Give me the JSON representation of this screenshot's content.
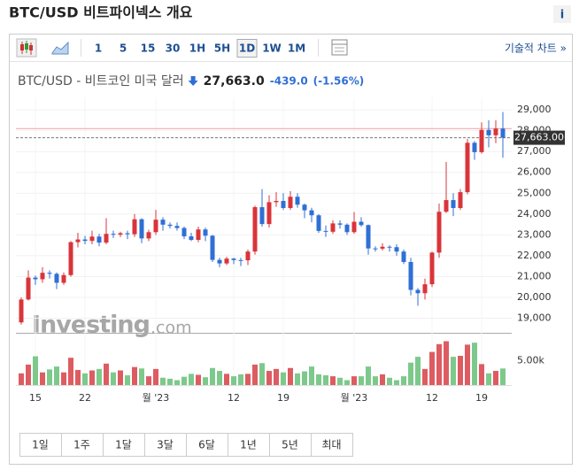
{
  "header": {
    "title": "BTC/USD 비트파이넥스 개요",
    "info": "i"
  },
  "toolbar": {
    "periods": [
      "1",
      "5",
      "15",
      "30",
      "1H",
      "5H",
      "1D",
      "1W",
      "1M"
    ],
    "selected": 6,
    "technical": "기술적 차트 »"
  },
  "quote": {
    "name": "BTC/USD - 비트코인 미국 달러",
    "price": "27,663.0",
    "change": "-439.0",
    "change_pct": "(-1.56%)"
  },
  "watermark": {
    "brand": "Investing",
    "suffix": ".com"
  },
  "ranges": [
    "1일",
    "1주",
    "1달",
    "3달",
    "6달",
    "1년",
    "5년",
    "최대"
  ],
  "chart_data": {
    "type": "candlestick",
    "up_color": "#d9343a",
    "down_color": "#2f6fd6",
    "volume_up_color": "#dd5c62",
    "volume_down_color": "#7dc98c",
    "grid": true,
    "xlim": [
      -0.75,
      69.25
    ],
    "xticks": [
      {
        "value": 2,
        "label": "15"
      },
      {
        "value": 9,
        "label": "22"
      },
      {
        "value": 19,
        "label": "월 '23"
      },
      {
        "value": 30,
        "label": "12"
      },
      {
        "value": 37,
        "label": "19"
      },
      {
        "value": 47,
        "label": "월 '23"
      },
      {
        "value": 58,
        "label": "12"
      },
      {
        "value": 65,
        "label": "19"
      }
    ],
    "ylim": [
      18300,
      29600
    ],
    "yticks": [
      {
        "value": 19000,
        "label": "19,000"
      },
      {
        "value": 20000,
        "label": "20,000"
      },
      {
        "value": 21000,
        "label": "21,000"
      },
      {
        "value": 22000,
        "label": "22,000"
      },
      {
        "value": 23000,
        "label": "23,000"
      },
      {
        "value": 24000,
        "label": "24,000"
      },
      {
        "value": 25000,
        "label": "25,000"
      },
      {
        "value": 26000,
        "label": "26,000"
      },
      {
        "value": 27000,
        "label": "27,000"
      },
      {
        "value": 28000,
        "label": "28,000"
      },
      {
        "value": 29000,
        "label": "29,000"
      }
    ],
    "current_price": {
      "value": 27663,
      "label": "27,663.00"
    },
    "previous_close": 28102,
    "volume_lim": [
      0,
      10000
    ],
    "volume_ticks": [
      {
        "value": 5000,
        "label": "5.00k"
      }
    ],
    "open": [
      18800,
      19900,
      20950,
      20870,
      21180,
      21130,
      20700,
      21070,
      22650,
      22780,
      22710,
      22920,
      22630,
      23050,
      23010,
      23080,
      23030,
      23750,
      22830,
      23130,
      23730,
      23490,
      23430,
      23330,
      22930,
      22760,
      23260,
      22960,
      21800,
      21630,
      21860,
      21790,
      21780,
      22200,
      24330,
      23520,
      24570,
      24630,
      24290,
      24830,
      24450,
      24180,
      23940,
      23190,
      23150,
      23550,
      23490,
      23130,
      23630,
      23470,
      22350,
      22340,
      22430,
      22410,
      22200,
      21700,
      20360,
      20200,
      20630,
      22150,
      24110,
      24670,
      24290,
      25050,
      27420,
      26970,
      28040,
      27780,
      28102
    ],
    "high": [
      20000,
      21300,
      21050,
      21450,
      21300,
      21200,
      21200,
      22700,
      23100,
      22950,
      23200,
      23050,
      23800,
      23200,
      23150,
      23200,
      24000,
      23800,
      23250,
      24200,
      23850,
      23600,
      23600,
      23400,
      23100,
      23400,
      23350,
      23000,
      21900,
      21950,
      21900,
      21900,
      22300,
      24400,
      25200,
      24900,
      25050,
      25000,
      25100,
      25000,
      24500,
      24300,
      24000,
      23450,
      23700,
      23700,
      23550,
      24100,
      23850,
      23500,
      22450,
      22600,
      22500,
      22550,
      22300,
      21900,
      20450,
      20900,
      22200,
      24500,
      26500,
      25000,
      25200,
      27600,
      27500,
      28400,
      28500,
      28500,
      28900
    ],
    "low": [
      18700,
      19850,
      20600,
      20700,
      20900,
      20400,
      20600,
      21000,
      22400,
      22550,
      22550,
      22450,
      22550,
      22850,
      22900,
      22800,
      22900,
      22600,
      22700,
      23000,
      23200,
      23300,
      23200,
      22800,
      22700,
      22650,
      22700,
      21700,
      21450,
      21550,
      21600,
      21500,
      21550,
      22050,
      23400,
      23350,
      24350,
      24200,
      24200,
      24300,
      23800,
      23600,
      23100,
      22900,
      23050,
      23300,
      23000,
      23050,
      23400,
      22050,
      22200,
      22250,
      22200,
      22000,
      21600,
      20100,
      19600,
      19900,
      20500,
      21900,
      24050,
      23900,
      24200,
      24950,
      26600,
      26900,
      27200,
      27400,
      26700
    ],
    "close": [
      19900,
      20950,
      20870,
      21180,
      21130,
      20700,
      21070,
      22650,
      22780,
      22710,
      22920,
      22630,
      23050,
      23010,
      23080,
      23030,
      23750,
      22830,
      23130,
      23730,
      23490,
      23430,
      23330,
      22930,
      22760,
      23260,
      22960,
      21800,
      21630,
      21860,
      21790,
      21780,
      22200,
      24330,
      23520,
      24570,
      24630,
      24290,
      24830,
      24450,
      24180,
      23940,
      23190,
      23150,
      23550,
      23490,
      23130,
      23630,
      23470,
      22350,
      22340,
      22430,
      22410,
      22200,
      21700,
      20360,
      20200,
      20630,
      22150,
      24110,
      24670,
      24290,
      25050,
      27420,
      26970,
      28040,
      27780,
      28102,
      27663
    ],
    "volume": [
      2400,
      4200,
      5900,
      2600,
      3200,
      3800,
      2600,
      5600,
      3100,
      2400,
      3000,
      3300,
      4400,
      2600,
      3000,
      2000,
      3700,
      3400,
      1800,
      3300,
      1500,
      1300,
      1000,
      1700,
      2300,
      2100,
      1600,
      3500,
      2900,
      2300,
      1800,
      2200,
      2300,
      4200,
      4500,
      2900,
      3300,
      2600,
      3500,
      2400,
      2800,
      3800,
      2200,
      2000,
      1800,
      1500,
      1000,
      1800,
      1800,
      3800,
      1800,
      2200,
      1500,
      1000,
      1800,
      4600,
      5800,
      3300,
      6800,
      8400,
      9000,
      5800,
      6000,
      8300,
      8700,
      4300,
      2400,
      2900,
      3400
    ]
  }
}
